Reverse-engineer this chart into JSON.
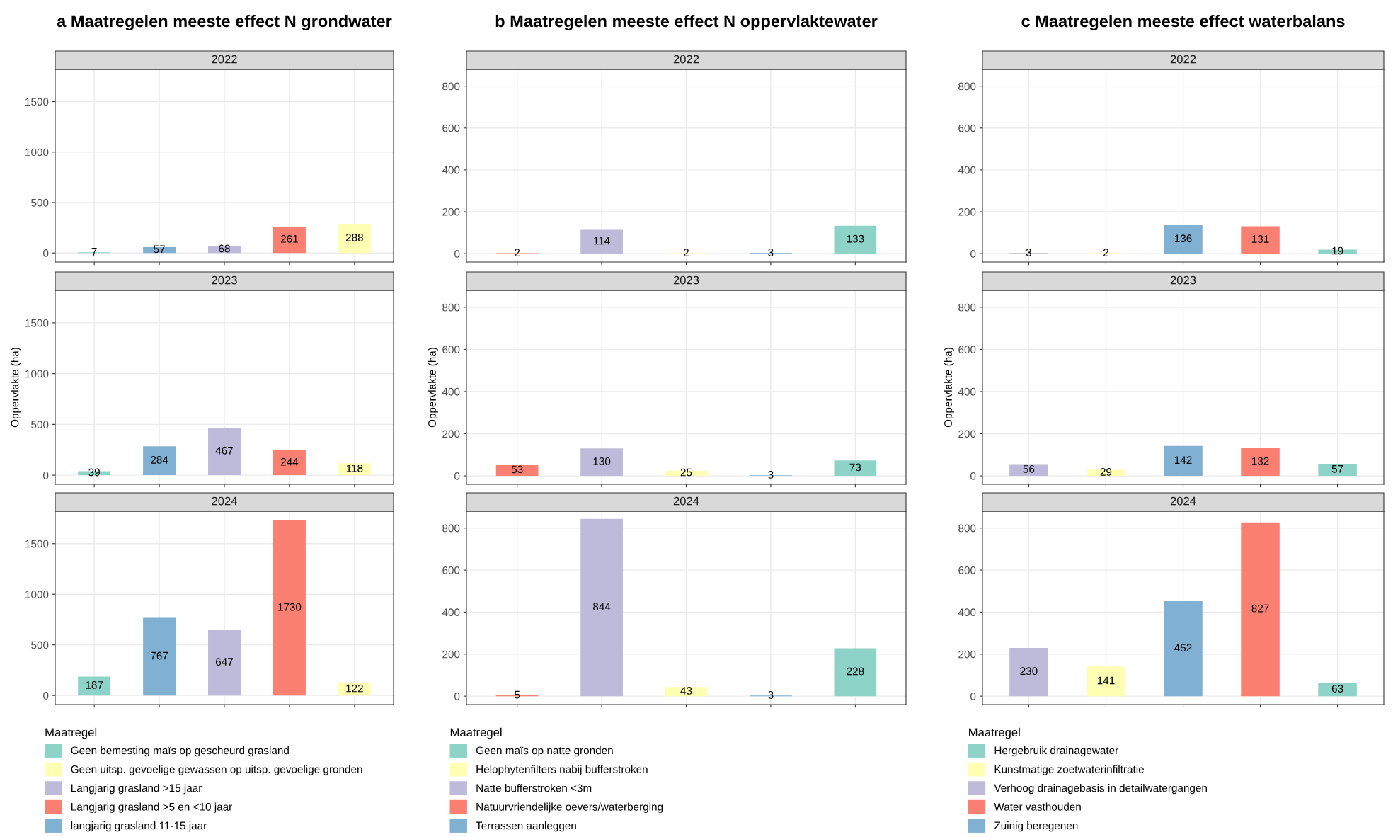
{
  "chart_data": [
    {
      "type": "bar",
      "title": "a Maatregelen meeste effect N grondwater",
      "subtitle": "2022",
      "categories": [
        null,
        null,
        null,
        null,
        null
      ],
      "ylim": [
        -90,
        1820
      ],
      "yticks": [
        0,
        500,
        1000,
        1500
      ],
      "grid": true,
      "tick_labels": "y",
      "data_labels": true,
      "series": [
        {
          "color": "#8dd3c7",
          "values": [
            7,
            null,
            null,
            null,
            null
          ]
        },
        {
          "color": "#ffffb3",
          "values": [
            null,
            null,
            null,
            null,
            288
          ]
        },
        {
          "color": "#bebada",
          "values": [
            null,
            null,
            68,
            null,
            null
          ]
        },
        {
          "color": "#fb8072",
          "values": [
            null,
            null,
            null,
            261,
            null
          ]
        },
        {
          "color": "#80b1d3",
          "values": [
            null,
            57,
            null,
            null,
            null
          ]
        }
      ]
    },
    {
      "type": "bar",
      "subtitle": "2023",
      "ylabel": "Oppervlakte (ha)",
      "categories": [
        null,
        null,
        null,
        null,
        null
      ],
      "ylim": [
        -90,
        1820
      ],
      "yticks": [
        0,
        500,
        1000,
        1500
      ],
      "grid": true,
      "tick_labels": "y",
      "data_labels": true,
      "series": [
        {
          "color": "#8dd3c7",
          "values": [
            39,
            null,
            null,
            null,
            null
          ]
        },
        {
          "color": "#ffffb3",
          "values": [
            null,
            null,
            null,
            null,
            118
          ]
        },
        {
          "color": "#bebada",
          "values": [
            null,
            null,
            467,
            null,
            null
          ]
        },
        {
          "color": "#fb8072",
          "values": [
            null,
            null,
            null,
            244,
            null
          ]
        },
        {
          "color": "#80b1d3",
          "values": [
            null,
            284,
            null,
            null,
            null
          ]
        }
      ]
    },
    {
      "type": "bar",
      "subtitle": "2024",
      "categories": [
        null,
        null,
        null,
        null,
        null
      ],
      "ylim": [
        -90,
        1820
      ],
      "yticks": [
        0,
        500,
        1000,
        1500
      ],
      "grid": true,
      "tick_labels": "y",
      "data_labels": true,
      "legend": "bottom",
      "legend_title": "Maatregel",
      "series": [
        {
          "name": "Geen bemesting maïs op gescheurd grasland",
          "color": "#8dd3c7",
          "values": [
            187,
            null,
            null,
            null,
            null
          ]
        },
        {
          "name": "Geen uitsp. gevoelige gewassen op uitsp. gevoelige gronden",
          "color": "#ffffb3",
          "values": [
            null,
            null,
            null,
            null,
            122
          ]
        },
        {
          "name": "Langjarig grasland >15 jaar",
          "color": "#bebada",
          "values": [
            null,
            null,
            647,
            null,
            null
          ]
        },
        {
          "name": "Langjarig grasland >5 en <10 jaar",
          "color": "#fb8072",
          "values": [
            null,
            null,
            null,
            1730,
            null
          ]
        },
        {
          "name": "langjarig grasland 11-15 jaar",
          "color": "#80b1d3",
          "values": [
            null,
            767,
            null,
            null,
            null
          ]
        }
      ]
    },
    {
      "type": "bar",
      "title": "b Maatregelen meeste effect N oppervlaktewater",
      "subtitle": "2022",
      "categories": [
        null,
        null,
        null,
        null,
        null
      ],
      "ylim": [
        -40,
        880
      ],
      "yticks": [
        0,
        200,
        400,
        600,
        800
      ],
      "grid": true,
      "tick_labels": "y",
      "data_labels": true,
      "series": [
        {
          "color": "#8dd3c7",
          "values": [
            null,
            null,
            null,
            null,
            133
          ]
        },
        {
          "color": "#ffffb3",
          "values": [
            null,
            null,
            2,
            null,
            null
          ]
        },
        {
          "color": "#bebada",
          "values": [
            null,
            114,
            null,
            null,
            null
          ]
        },
        {
          "color": "#fb8072",
          "values": [
            2,
            null,
            null,
            null,
            null
          ]
        },
        {
          "color": "#80b1d3",
          "values": [
            null,
            null,
            null,
            3,
            null
          ]
        }
      ]
    },
    {
      "type": "bar",
      "subtitle": "2023",
      "ylabel": "Oppervlakte (ha)",
      "categories": [
        null,
        null,
        null,
        null,
        null
      ],
      "ylim": [
        -40,
        880
      ],
      "yticks": [
        0,
        200,
        400,
        600,
        800
      ],
      "grid": true,
      "tick_labels": "y",
      "data_labels": true,
      "series": [
        {
          "color": "#8dd3c7",
          "values": [
            null,
            null,
            null,
            null,
            73
          ]
        },
        {
          "color": "#ffffb3",
          "values": [
            null,
            null,
            25,
            null,
            null
          ]
        },
        {
          "color": "#bebada",
          "values": [
            null,
            130,
            null,
            null,
            null
          ]
        },
        {
          "color": "#fb8072",
          "values": [
            53,
            null,
            null,
            null,
            null
          ]
        },
        {
          "color": "#80b1d3",
          "values": [
            null,
            null,
            null,
            3,
            null
          ]
        }
      ]
    },
    {
      "type": "bar",
      "subtitle": "2024",
      "categories": [
        null,
        null,
        null,
        null,
        null
      ],
      "ylim": [
        -40,
        880
      ],
      "yticks": [
        0,
        200,
        400,
        600,
        800
      ],
      "grid": true,
      "tick_labels": "y",
      "data_labels": true,
      "legend": "bottom",
      "legend_title": "Maatregel",
      "series": [
        {
          "name": "Geen maïs op natte gronden",
          "color": "#8dd3c7",
          "values": [
            null,
            null,
            null,
            null,
            228
          ]
        },
        {
          "name": "Helophytenfilters nabij bufferstroken",
          "color": "#ffffb3",
          "values": [
            null,
            null,
            43,
            null,
            null
          ]
        },
        {
          "name": "Natte bufferstroken <3m",
          "color": "#bebada",
          "values": [
            null,
            844,
            null,
            null,
            null
          ]
        },
        {
          "name": "Natuurvriendelijke oevers/waterberging",
          "color": "#fb8072",
          "values": [
            5,
            null,
            null,
            null,
            null
          ]
        },
        {
          "name": "Terrassen aanleggen",
          "color": "#80b1d3",
          "values": [
            null,
            null,
            null,
            3,
            null
          ]
        }
      ]
    },
    {
      "type": "bar",
      "title": "c Maatregelen meeste effect waterbalans",
      "subtitle": "2022",
      "categories": [
        null,
        null,
        null,
        null,
        null
      ],
      "ylim": [
        -40,
        880
      ],
      "yticks": [
        0,
        200,
        400,
        600,
        800
      ],
      "grid": true,
      "tick_labels": "y",
      "data_labels": true,
      "series": [
        {
          "color": "#8dd3c7",
          "values": [
            null,
            null,
            null,
            null,
            19
          ]
        },
        {
          "color": "#ffffb3",
          "values": [
            null,
            2,
            null,
            null,
            null
          ]
        },
        {
          "color": "#bebada",
          "values": [
            3,
            null,
            null,
            null,
            null
          ]
        },
        {
          "color": "#fb8072",
          "values": [
            null,
            null,
            null,
            131,
            null
          ]
        },
        {
          "color": "#80b1d3",
          "values": [
            null,
            null,
            136,
            null,
            null
          ]
        }
      ]
    },
    {
      "type": "bar",
      "subtitle": "2023",
      "ylabel": "Oppervlakte (ha)",
      "categories": [
        null,
        null,
        null,
        null,
        null
      ],
      "ylim": [
        -40,
        880
      ],
      "yticks": [
        0,
        200,
        400,
        600,
        800
      ],
      "grid": true,
      "tick_labels": "y",
      "data_labels": true,
      "series": [
        {
          "color": "#8dd3c7",
          "values": [
            null,
            null,
            null,
            null,
            57
          ]
        },
        {
          "color": "#ffffb3",
          "values": [
            null,
            29,
            null,
            null,
            null
          ]
        },
        {
          "color": "#bebada",
          "values": [
            56,
            null,
            null,
            null,
            null
          ]
        },
        {
          "color": "#fb8072",
          "values": [
            null,
            null,
            null,
            132,
            null
          ]
        },
        {
          "color": "#80b1d3",
          "values": [
            null,
            null,
            142,
            null,
            null
          ]
        }
      ]
    },
    {
      "type": "bar",
      "subtitle": "2024",
      "categories": [
        null,
        null,
        null,
        null,
        null
      ],
      "ylim": [
        -40,
        880
      ],
      "yticks": [
        0,
        200,
        400,
        600,
        800
      ],
      "grid": true,
      "tick_labels": "y",
      "data_labels": true,
      "legend": "bottom",
      "legend_title": "Maatregel",
      "series": [
        {
          "name": "Hergebruik drainagewater",
          "color": "#8dd3c7",
          "values": [
            null,
            null,
            null,
            null,
            63
          ]
        },
        {
          "name": "Kunstmatige zoetwaterinfiltratie",
          "color": "#ffffb3",
          "values": [
            null,
            141,
            null,
            null,
            null
          ]
        },
        {
          "name": "Verhoog drainagebasis in detailwatergangen",
          "color": "#bebada",
          "values": [
            230,
            null,
            null,
            null,
            null
          ]
        },
        {
          "name": "Water vasthouden",
          "color": "#fb8072",
          "values": [
            null,
            null,
            null,
            827,
            null
          ]
        },
        {
          "name": "Zuinig beregenen",
          "color": "#80b1d3",
          "values": [
            null,
            null,
            452,
            null,
            null
          ]
        }
      ]
    }
  ]
}
